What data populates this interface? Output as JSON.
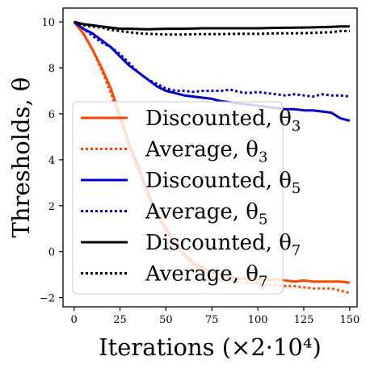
{
  "chart_data": {
    "type": "line",
    "xlabel": "Iterations (×2·10⁴)",
    "ylabel": "Thresholds, θ",
    "xlim": [
      -6,
      154
    ],
    "ylim": [
      -2.4,
      10.6
    ],
    "xticks": [
      0,
      25,
      50,
      75,
      100,
      125,
      150
    ],
    "yticks": [
      -2,
      0,
      2,
      4,
      6,
      8,
      10
    ],
    "xtick_labels": [
      "0",
      "25",
      "50",
      "75",
      "100",
      "125",
      "150"
    ],
    "ytick_labels": [
      "−2",
      "0",
      "2",
      "4",
      "6",
      "8",
      "10"
    ],
    "grid": false,
    "legend_position": "lower-left",
    "series": [
      {
        "name": "Discounted, θ3",
        "legend_main": "Discounted, θ",
        "legend_sub": "3",
        "color": "#FF4500",
        "style": "solid",
        "x": [
          0,
          5,
          10,
          15,
          20,
          25,
          30,
          35,
          40,
          45,
          50,
          55,
          60,
          65,
          70,
          75,
          80,
          85,
          90,
          95,
          100,
          105,
          110,
          115,
          120,
          125,
          130,
          135,
          140,
          145,
          150
        ],
        "y": [
          10.0,
          9.5,
          8.8,
          8.0,
          7.1,
          5.9,
          4.7,
          3.7,
          2.6,
          1.7,
          1.0,
          0.4,
          -0.1,
          -0.5,
          -0.7,
          -0.9,
          -1.0,
          -1.1,
          -1.15,
          -1.2,
          -1.2,
          -1.25,
          -1.2,
          -1.25,
          -1.3,
          -1.25,
          -1.3,
          -1.3,
          -1.3,
          -1.3,
          -1.35
        ]
      },
      {
        "name": "Average, θ3",
        "legend_main": "Average, θ",
        "legend_sub": "3",
        "color": "#FF4500",
        "style": "dotted",
        "x": [
          0,
          5,
          10,
          15,
          20,
          25,
          30,
          35,
          40,
          45,
          50,
          55,
          60,
          65,
          70,
          75,
          80,
          85,
          90,
          95,
          100,
          105,
          110,
          115,
          120,
          125,
          130,
          135,
          140,
          145,
          150
        ],
        "y": [
          10.0,
          9.5,
          8.8,
          7.9,
          6.9,
          5.8,
          4.6,
          3.5,
          2.5,
          1.6,
          0.9,
          0.3,
          -0.2,
          -0.6,
          -0.9,
          -1.1,
          -1.2,
          -1.3,
          -1.35,
          -1.35,
          -1.4,
          -1.45,
          -1.45,
          -1.5,
          -1.5,
          -1.55,
          -1.6,
          -1.6,
          -1.6,
          -1.7,
          -1.8
        ]
      },
      {
        "name": "Discounted, θ5",
        "legend_main": "Discounted, θ",
        "legend_sub": "5",
        "color": "#0000CD",
        "style": "solid",
        "x": [
          0,
          5,
          10,
          15,
          20,
          25,
          30,
          35,
          40,
          45,
          50,
          55,
          60,
          65,
          70,
          75,
          80,
          85,
          90,
          95,
          100,
          105,
          110,
          115,
          120,
          125,
          130,
          135,
          140,
          145,
          150
        ],
        "y": [
          10.0,
          9.7,
          9.5,
          9.2,
          8.9,
          8.5,
          8.1,
          7.8,
          7.5,
          7.2,
          7.0,
          6.9,
          6.8,
          6.75,
          6.7,
          6.65,
          6.55,
          6.5,
          6.45,
          6.4,
          6.35,
          6.3,
          6.25,
          6.2,
          6.2,
          6.15,
          6.15,
          6.1,
          6.05,
          5.8,
          5.7
        ]
      },
      {
        "name": "Average, θ5",
        "legend_main": "Average, θ",
        "legend_sub": "5",
        "color": "#0000CD",
        "style": "dotted",
        "x": [
          0,
          5,
          10,
          15,
          20,
          25,
          30,
          35,
          40,
          45,
          50,
          55,
          60,
          65,
          70,
          75,
          80,
          85,
          90,
          95,
          100,
          105,
          110,
          115,
          120,
          125,
          130,
          135,
          140,
          145,
          150
        ],
        "y": [
          10.0,
          9.7,
          9.4,
          9.1,
          8.9,
          8.6,
          8.2,
          7.8,
          7.5,
          7.3,
          7.1,
          7.0,
          7.0,
          6.95,
          7.0,
          7.0,
          7.0,
          7.05,
          6.95,
          6.9,
          6.95,
          6.9,
          6.85,
          6.8,
          6.85,
          6.8,
          6.75,
          6.85,
          6.8,
          6.8,
          6.75
        ]
      },
      {
        "name": "Discounted, θ7",
        "legend_main": "Discounted, θ",
        "legend_sub": "7",
        "color": "#000000",
        "style": "solid",
        "x": [
          0,
          5,
          10,
          15,
          20,
          25,
          30,
          40,
          50,
          60,
          70,
          80,
          90,
          100,
          110,
          120,
          130,
          140,
          145,
          150
        ],
        "y": [
          10.0,
          9.9,
          9.85,
          9.8,
          9.75,
          9.7,
          9.7,
          9.68,
          9.7,
          9.7,
          9.72,
          9.72,
          9.72,
          9.72,
          9.74,
          9.75,
          9.76,
          9.78,
          9.8,
          9.8
        ]
      },
      {
        "name": "Average, θ7",
        "legend_main": "Average, θ",
        "legend_sub": "7",
        "color": "#000000",
        "style": "dotted",
        "x": [
          0,
          5,
          10,
          15,
          20,
          25,
          30,
          35,
          40,
          50,
          60,
          70,
          80,
          90,
          100,
          110,
          120,
          130,
          140,
          145,
          150
        ],
        "y": [
          10.0,
          9.85,
          9.8,
          9.75,
          9.65,
          9.6,
          9.55,
          9.5,
          9.48,
          9.45,
          9.45,
          9.47,
          9.47,
          9.48,
          9.48,
          9.5,
          9.5,
          9.52,
          9.55,
          9.6,
          9.6
        ]
      }
    ]
  }
}
